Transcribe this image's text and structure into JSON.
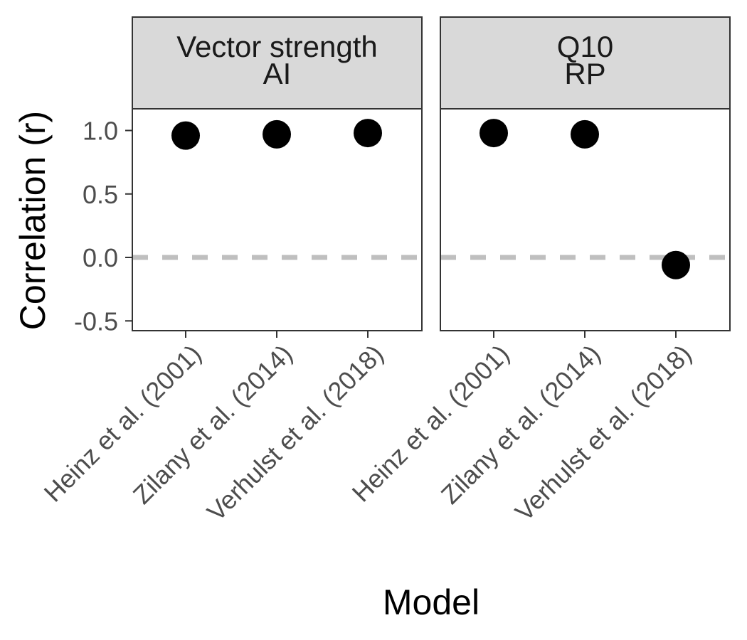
{
  "chart_data": {
    "type": "scatter",
    "ylabel": "Correlation (r)",
    "xlabel": "Model",
    "categories": [
      "Heinz et al. (2001)",
      "Zilany et al. (2014)",
      "Verhulst et al. (2018)"
    ],
    "ylim": [
      -0.57,
      1.17
    ],
    "yticks": [
      "1.0",
      "0.5",
      "0.0",
      "-0.5"
    ],
    "reference_line": {
      "y": 0,
      "style": "dashed",
      "color": "#bfbfbf"
    },
    "grid": false,
    "point_color": "#000000",
    "panels": [
      {
        "strip": [
          "Vector strength",
          "AI"
        ],
        "values": [
          0.96,
          0.97,
          0.98
        ]
      },
      {
        "strip": [
          "Q10",
          "RP"
        ],
        "values": [
          0.98,
          0.97,
          -0.06
        ]
      }
    ]
  }
}
